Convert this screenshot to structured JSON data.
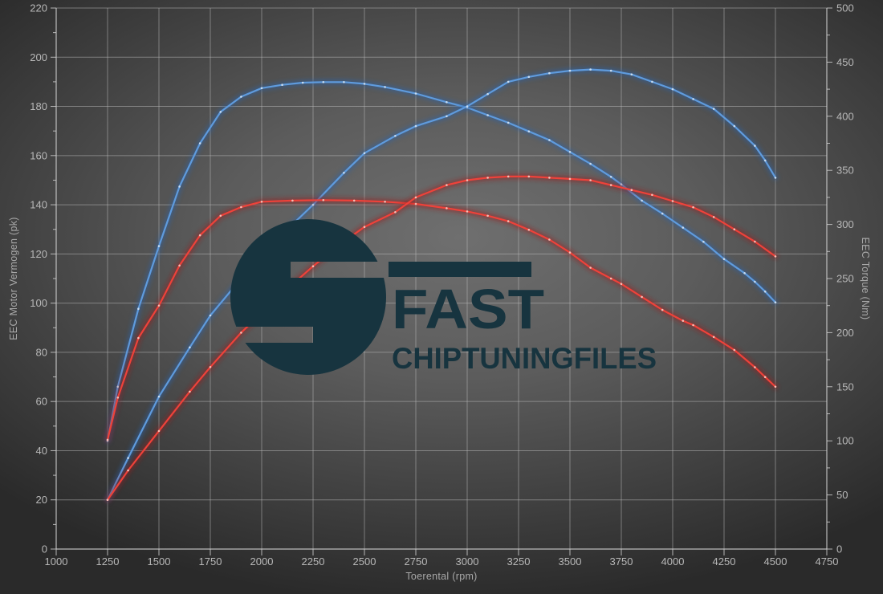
{
  "chart_data": {
    "type": "line",
    "title": "",
    "legend": "none",
    "grid": true,
    "x_axis": {
      "label": "Toerental (rpm)",
      "min": 1000,
      "max": 4750,
      "ticks": [
        1000,
        1250,
        1500,
        1750,
        2000,
        2250,
        2500,
        2750,
        3000,
        3250,
        3500,
        3750,
        4000,
        4250,
        4500,
        4750
      ]
    },
    "y_axis_left": {
      "label": "EEC Motor Vermogen (pk)",
      "min": 0,
      "max": 220,
      "ticks": [
        0,
        20,
        40,
        60,
        80,
        100,
        120,
        140,
        160,
        180,
        200,
        220
      ]
    },
    "y_axis_right": {
      "label": "EEC Torque (Nm)",
      "min": 0,
      "max": 500,
      "ticks": [
        0,
        50,
        100,
        150,
        200,
        250,
        300,
        350,
        400,
        450,
        500
      ]
    },
    "colors": {
      "blue_core": "#5f9bdd",
      "blue_glow": "#2a62a8",
      "blue_marker": "#d8e8f8",
      "red_core": "#ee423a",
      "red_glow": "#991c1c",
      "red_marker": "#ffd2c8",
      "grid": "rgba(190,190,190,0.5)",
      "axis": "rgba(214,214,214,0.75)",
      "tick_text": "#b8b8b8"
    },
    "series": [
      {
        "id": "torque-blue",
        "axis": "right",
        "color_key": "blue",
        "points": [
          [
            1250,
            100
          ],
          [
            1300,
            150
          ],
          [
            1400,
            222
          ],
          [
            1500,
            280
          ],
          [
            1600,
            335
          ],
          [
            1700,
            375
          ],
          [
            1800,
            404
          ],
          [
            1900,
            418
          ],
          [
            2000,
            426
          ],
          [
            2100,
            429
          ],
          [
            2200,
            431
          ],
          [
            2300,
            431.5
          ],
          [
            2400,
            431.5
          ],
          [
            2500,
            430
          ],
          [
            2600,
            427
          ],
          [
            2750,
            421
          ],
          [
            2900,
            413
          ],
          [
            3000,
            408
          ],
          [
            3100,
            401
          ],
          [
            3200,
            394
          ],
          [
            3300,
            386
          ],
          [
            3400,
            378
          ],
          [
            3500,
            367
          ],
          [
            3600,
            356
          ],
          [
            3700,
            344
          ],
          [
            3750,
            337
          ],
          [
            3850,
            322
          ],
          [
            3950,
            310
          ],
          [
            4050,
            297
          ],
          [
            4150,
            284
          ],
          [
            4250,
            268
          ],
          [
            4350,
            255
          ],
          [
            4400,
            247
          ],
          [
            4450,
            238
          ],
          [
            4500,
            228
          ]
        ]
      },
      {
        "id": "power-blue",
        "axis": "left",
        "color_key": "blue",
        "points": [
          [
            1250,
            20
          ],
          [
            1350,
            37
          ],
          [
            1500,
            62
          ],
          [
            1650,
            82
          ],
          [
            1750,
            95
          ],
          [
            1900,
            110
          ],
          [
            2000,
            119
          ],
          [
            2100,
            128
          ],
          [
            2250,
            140
          ],
          [
            2400,
            153
          ],
          [
            2500,
            161
          ],
          [
            2650,
            168
          ],
          [
            2750,
            172
          ],
          [
            2900,
            176
          ],
          [
            3000,
            180
          ],
          [
            3100,
            185
          ],
          [
            3200,
            190
          ],
          [
            3300,
            192
          ],
          [
            3400,
            193.5
          ],
          [
            3500,
            194.5
          ],
          [
            3600,
            195
          ],
          [
            3700,
            194.5
          ],
          [
            3800,
            193
          ],
          [
            3900,
            190
          ],
          [
            4000,
            187
          ],
          [
            4100,
            183
          ],
          [
            4200,
            179
          ],
          [
            4300,
            172
          ],
          [
            4400,
            164
          ],
          [
            4450,
            158
          ],
          [
            4500,
            151
          ]
        ]
      },
      {
        "id": "torque-red",
        "axis": "right",
        "color_key": "red",
        "points": [
          [
            1250,
            101
          ],
          [
            1300,
            140
          ],
          [
            1400,
            195
          ],
          [
            1500,
            225
          ],
          [
            1600,
            262
          ],
          [
            1700,
            290
          ],
          [
            1800,
            308
          ],
          [
            1900,
            316
          ],
          [
            2000,
            321
          ],
          [
            2150,
            322
          ],
          [
            2300,
            322.5
          ],
          [
            2450,
            322
          ],
          [
            2600,
            321
          ],
          [
            2750,
            319
          ],
          [
            2900,
            315
          ],
          [
            3000,
            312
          ],
          [
            3100,
            308
          ],
          [
            3200,
            303
          ],
          [
            3300,
            295
          ],
          [
            3400,
            286
          ],
          [
            3500,
            274
          ],
          [
            3600,
            260
          ],
          [
            3700,
            250
          ],
          [
            3750,
            245
          ],
          [
            3850,
            233
          ],
          [
            3950,
            221
          ],
          [
            4050,
            211
          ],
          [
            4100,
            207
          ],
          [
            4200,
            196
          ],
          [
            4300,
            184
          ],
          [
            4400,
            168
          ],
          [
            4450,
            159
          ],
          [
            4500,
            150
          ]
        ]
      },
      {
        "id": "power-red",
        "axis": "left",
        "color_key": "red",
        "points": [
          [
            1250,
            20
          ],
          [
            1350,
            32
          ],
          [
            1500,
            48
          ],
          [
            1650,
            64
          ],
          [
            1750,
            74
          ],
          [
            1900,
            88
          ],
          [
            2000,
            96
          ],
          [
            2100,
            104
          ],
          [
            2250,
            115
          ],
          [
            2400,
            125
          ],
          [
            2500,
            131
          ],
          [
            2650,
            137
          ],
          [
            2750,
            143
          ],
          [
            2900,
            148
          ],
          [
            3000,
            150
          ],
          [
            3100,
            151
          ],
          [
            3200,
            151.5
          ],
          [
            3300,
            151.5
          ],
          [
            3400,
            151
          ],
          [
            3500,
            150.5
          ],
          [
            3600,
            150
          ],
          [
            3700,
            148
          ],
          [
            3800,
            146
          ],
          [
            3900,
            144
          ],
          [
            4000,
            141.5
          ],
          [
            4100,
            139
          ],
          [
            4200,
            135
          ],
          [
            4300,
            130
          ],
          [
            4400,
            125
          ],
          [
            4500,
            119
          ]
        ]
      }
    ],
    "watermark": {
      "text_main": "FAST",
      "text_sub": "CHIPTUNINGFILES",
      "color": "#17343f"
    }
  }
}
